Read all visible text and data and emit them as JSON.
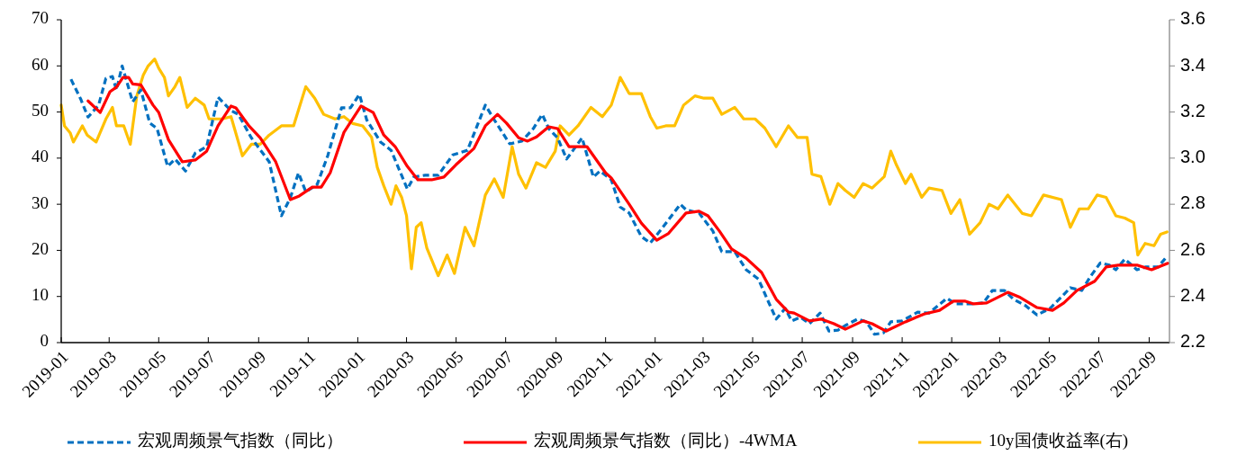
{
  "chart_data": {
    "type": "line",
    "legend": "bottom",
    "grid": false,
    "xlim": [
      "2019-01-01",
      "2022-09-26"
    ],
    "xticks": [
      "2019-01",
      "2019-03",
      "2019-05",
      "2019-07",
      "2019-09",
      "2019-11",
      "2020-01",
      "2020-03",
      "2020-05",
      "2020-07",
      "2020-09",
      "2020-11",
      "2021-01",
      "2021-03",
      "2021-05",
      "2021-07",
      "2021-09",
      "2021-11",
      "2022-01",
      "2022-03",
      "2022-05",
      "2022-07",
      "2022-09"
    ],
    "ylim": [
      0,
      70
    ],
    "yticks": [
      0,
      10,
      20,
      30,
      40,
      50,
      60,
      70
    ],
    "y2lim": [
      2.2,
      3.6
    ],
    "y2ticks": [
      2.2,
      2.4,
      2.6,
      2.8,
      {
        "value": 3,
        "label": "3.0"
      },
      3.2,
      3.4,
      3.6
    ],
    "series": [
      {
        "name": "宏观周频景气指数（同比）",
        "color": "#0070c0",
        "line_style": "dashed",
        "x": [
          "2019-01-13",
          "2019-01-25",
          "2019-02-03",
          "2019-02-16",
          "2019-02-25",
          "2019-03-05",
          "2019-03-10",
          "2019-03-17",
          "2019-03-30",
          "2019-04-09",
          "2019-04-20",
          "2019-04-29",
          "2019-05-12",
          "2019-05-21",
          "2019-06-03",
          "2019-06-15",
          "2019-06-29",
          "2019-07-13",
          "2019-07-29",
          "2019-08-07",
          "2019-08-23",
          "2019-09-14",
          "2019-09-29",
          "2019-10-10",
          "2019-10-20",
          "2019-10-29",
          "2019-11-12",
          "2019-11-25",
          "2019-12-12",
          "2019-12-23",
          "2020-01-03",
          "2020-01-12",
          "2020-01-29",
          "2020-02-11",
          "2020-03-02",
          "2020-03-10",
          "2020-03-24",
          "2020-04-09",
          "2020-04-27",
          "2020-05-15",
          "2020-06-06",
          "2020-06-17",
          "2020-07-06",
          "2020-07-21",
          "2020-08-04",
          "2020-08-15",
          "2020-08-23",
          "2020-09-03",
          "2020-09-14",
          "2020-09-22",
          "2020-10-03",
          "2020-10-17",
          "2020-10-25",
          "2020-11-08",
          "2020-11-19",
          "2020-11-30",
          "2020-12-15",
          "2020-12-26",
          "2021-01-10",
          "2021-02-01",
          "2021-02-08",
          "2021-02-24",
          "2021-03-13",
          "2021-03-24",
          "2021-04-09",
          "2021-04-23",
          "2021-05-08",
          "2021-05-19",
          "2021-05-30",
          "2021-06-10",
          "2021-06-18",
          "2021-06-29",
          "2021-07-10",
          "2021-07-23",
          "2021-08-03",
          "2021-08-14",
          "2021-08-23",
          "2021-09-07",
          "2021-09-18",
          "2021-09-28",
          "2021-10-09",
          "2021-10-18",
          "2021-11-01",
          "2021-11-20",
          "2021-12-04",
          "2021-12-26",
          "2022-01-06",
          "2022-01-25",
          "2022-02-09",
          "2022-02-20",
          "2022-03-07",
          "2022-03-18",
          "2022-04-02",
          "2022-04-16",
          "2022-05-02",
          "2022-05-16",
          "2022-05-27",
          "2022-06-10",
          "2022-06-21",
          "2022-07-03",
          "2022-07-14",
          "2022-07-22",
          "2022-08-02",
          "2022-08-17",
          "2022-08-28",
          "2022-09-12",
          "2022-09-23"
        ],
        "values": [
          57.1,
          52.8,
          48.9,
          51.5,
          57.3,
          57.7,
          54.8,
          60,
          52.2,
          54.8,
          47.6,
          46.4,
          38.2,
          39.8,
          37.2,
          41.1,
          42.5,
          53.2,
          50.3,
          49.5,
          44.4,
          39.2,
          27.5,
          31.4,
          36.8,
          32.7,
          34.3,
          40.5,
          50.9,
          50.9,
          53.8,
          48.3,
          43.5,
          41.7,
          33.3,
          35.9,
          36.3,
          36.3,
          40.7,
          41.7,
          51.5,
          48.3,
          43.1,
          43.7,
          46.4,
          49.5,
          46.4,
          44.4,
          39.8,
          41.7,
          44.4,
          35.9,
          37.2,
          35.3,
          29.4,
          28.1,
          23,
          21.6,
          24.9,
          30,
          28.8,
          28.1,
          24.2,
          19.7,
          19.7,
          15.8,
          13.8,
          9.4,
          5.1,
          7.4,
          4.7,
          5.5,
          4.1,
          6.4,
          2.5,
          2.7,
          3.7,
          5.1,
          4.5,
          1.8,
          2.1,
          4.5,
          4.7,
          6.6,
          6.4,
          9.6,
          8.4,
          8.4,
          8.6,
          11.3,
          11.3,
          9.4,
          8,
          6,
          7.4,
          9.9,
          11.9,
          11.3,
          14.4,
          17.3,
          16.8,
          15.8,
          18.1,
          15.8,
          16.4,
          16.4,
          18.7
        ]
      },
      {
        "name": "宏观周频景气指数（同比）-4WMA",
        "color": "#ff0000",
        "line_style": "solid",
        "x": [
          "2019-02-03",
          "2019-02-18",
          "2019-03-02",
          "2019-03-10",
          "2019-03-18",
          "2019-03-25",
          "2019-03-30",
          "2019-04-09",
          "2019-04-24",
          "2019-05-01",
          "2019-05-13",
          "2019-05-30",
          "2019-06-15",
          "2019-06-29",
          "2019-07-13",
          "2019-07-29",
          "2019-08-04",
          "2019-08-20",
          "2019-09-03",
          "2019-09-22",
          "2019-10-10",
          "2019-10-21",
          "2019-11-06",
          "2019-11-17",
          "2019-11-28",
          "2019-12-15",
          "2020-01-05",
          "2020-01-20",
          "2020-02-02",
          "2020-02-16",
          "2020-03-02",
          "2020-03-15",
          "2020-04-01",
          "2020-04-16",
          "2020-05-01",
          "2020-05-23",
          "2020-06-06",
          "2020-06-21",
          "2020-07-02",
          "2020-07-17",
          "2020-07-28",
          "2020-08-08",
          "2020-08-23",
          "2020-09-03",
          "2020-09-17",
          "2020-10-09",
          "2020-11-01",
          "2020-11-08",
          "2020-11-30",
          "2020-12-15",
          "2021-01-03",
          "2021-01-17",
          "2021-02-08",
          "2021-02-24",
          "2021-03-07",
          "2021-03-21",
          "2021-04-05",
          "2021-04-23",
          "2021-05-12",
          "2021-05-30",
          "2021-06-14",
          "2021-06-21",
          "2021-07-10",
          "2021-07-24",
          "2021-08-09",
          "2021-08-23",
          "2021-09-14",
          "2021-09-25",
          "2021-10-12",
          "2021-11-05",
          "2021-11-28",
          "2021-12-17",
          "2022-01-03",
          "2022-01-17",
          "2022-01-28",
          "2022-02-13",
          "2022-03-11",
          "2022-03-25",
          "2022-04-16",
          "2022-05-05",
          "2022-05-19",
          "2022-06-04",
          "2022-06-26",
          "2022-07-10",
          "2022-07-25",
          "2022-08-17",
          "2022-09-04",
          "2022-09-24"
        ],
        "values": [
          52.4,
          49.9,
          54.4,
          55.4,
          57.5,
          57.5,
          56.1,
          55.9,
          51.5,
          49.9,
          44,
          39.2,
          39.6,
          41.5,
          47,
          51.3,
          50.9,
          47,
          44.4,
          39.2,
          31,
          31.8,
          33.7,
          33.7,
          36.8,
          45.6,
          51.3,
          49.9,
          45,
          42.5,
          38.2,
          35.3,
          35.3,
          35.9,
          38.6,
          42.1,
          47,
          49.5,
          47.6,
          44.4,
          43.7,
          44.6,
          46.8,
          46.4,
          42.5,
          42.5,
          36.8,
          35.7,
          30,
          25.9,
          22.2,
          23.6,
          28.1,
          28.5,
          27.5,
          24.2,
          20.3,
          18.3,
          15.2,
          9.4,
          6.6,
          6.4,
          4.7,
          5.1,
          4.1,
          2.9,
          4.7,
          4.1,
          2.5,
          4.5,
          6.2,
          7,
          9,
          9,
          8.4,
          8.6,
          10.9,
          9.9,
          7.6,
          7,
          8.6,
          11.3,
          13.3,
          16.4,
          16.8,
          16.8,
          15.8,
          17.2
        ]
      },
      {
        "name": "10y国债收益率(右)",
        "color": "#ffc000",
        "line_style": "solid",
        "axis": "y2",
        "x": [
          "2019-01-01",
          "2019-01-05",
          "2019-01-12",
          "2019-01-16",
          "2019-01-27",
          "2019-02-02",
          "2019-02-13",
          "2019-02-25",
          "2019-03-05",
          "2019-03-10",
          "2019-03-19",
          "2019-03-27",
          "2019-04-04",
          "2019-04-12",
          "2019-04-18",
          "2019-04-26",
          "2019-05-01",
          "2019-05-08",
          "2019-05-13",
          "2019-05-21",
          "2019-05-27",
          "2019-06-05",
          "2019-06-15",
          "2019-06-26",
          "2019-07-02",
          "2019-07-18",
          "2019-07-29",
          "2019-08-12",
          "2019-08-23",
          "2019-09-03",
          "2019-09-14",
          "2019-09-29",
          "2019-10-14",
          "2019-10-21",
          "2019-10-29",
          "2019-11-09",
          "2019-11-20",
          "2019-12-04",
          "2019-12-15",
          "2019-12-26",
          "2020-01-07",
          "2020-01-18",
          "2020-01-25",
          "2020-02-02",
          "2020-02-11",
          "2020-02-17",
          "2020-02-24",
          "2020-03-01",
          "2020-03-07",
          "2020-03-13",
          "2020-03-19",
          "2020-03-26",
          "2020-04-09",
          "2020-04-20",
          "2020-04-29",
          "2020-05-12",
          "2020-05-23",
          "2020-06-06",
          "2020-06-17",
          "2020-06-28",
          "2020-07-09",
          "2020-07-17",
          "2020-07-26",
          "2020-08-08",
          "2020-08-19",
          "2020-08-31",
          "2020-09-06",
          "2020-09-17",
          "2020-09-28",
          "2020-10-14",
          "2020-10-28",
          "2020-11-08",
          "2020-11-19",
          "2020-11-30",
          "2020-12-15",
          "2020-12-26",
          "2021-01-03",
          "2021-01-14",
          "2021-01-25",
          "2021-02-05",
          "2021-02-19",
          "2021-03-02",
          "2021-03-13",
          "2021-03-24",
          "2021-04-09",
          "2021-04-20",
          "2021-05-04",
          "2021-05-16",
          "2021-05-30",
          "2021-06-14",
          "2021-06-25",
          "2021-07-07",
          "2021-07-13",
          "2021-07-24",
          "2021-08-04",
          "2021-08-14",
          "2021-08-23",
          "2021-09-03",
          "2021-09-14",
          "2021-09-25",
          "2021-10-10",
          "2021-10-18",
          "2021-10-25",
          "2021-11-05",
          "2021-11-12",
          "2021-11-25",
          "2021-12-04",
          "2021-12-20",
          "2021-12-31",
          "2022-01-11",
          "2022-01-23",
          "2022-02-05",
          "2022-02-16",
          "2022-02-27",
          "2022-03-11",
          "2022-03-29",
          "2022-04-09",
          "2022-04-24",
          "2022-05-16",
          "2022-05-27",
          "2022-06-07",
          "2022-06-18",
          "2022-06-29",
          "2022-07-10",
          "2022-07-22",
          "2022-08-02",
          "2022-08-13",
          "2022-08-18",
          "2022-08-27",
          "2022-09-07",
          "2022-09-15",
          "2022-09-23"
        ],
        "values": [
          3.23,
          3.14,
          3.11,
          3.07,
          3.14,
          3.1,
          3.07,
          3.17,
          3.22,
          3.14,
          3.14,
          3.06,
          3.27,
          3.36,
          3.4,
          3.43,
          3.39,
          3.35,
          3.27,
          3.31,
          3.35,
          3.22,
          3.26,
          3.23,
          3.17,
          3.17,
          3.18,
          3.01,
          3.06,
          3.06,
          3.1,
          3.14,
          3.14,
          3.22,
          3.31,
          3.26,
          3.19,
          3.17,
          3.18,
          3.15,
          3.14,
          3.09,
          2.96,
          2.88,
          2.8,
          2.88,
          2.83,
          2.75,
          2.52,
          2.7,
          2.72,
          2.61,
          2.49,
          2.58,
          2.5,
          2.7,
          2.62,
          2.84,
          2.91,
          2.83,
          3.05,
          2.93,
          2.87,
          2.98,
          2.96,
          3.03,
          3.14,
          3.1,
          3.14,
          3.22,
          3.18,
          3.23,
          3.35,
          3.28,
          3.28,
          3.18,
          3.13,
          3.14,
          3.14,
          3.23,
          3.27,
          3.26,
          3.26,
          3.19,
          3.22,
          3.17,
          3.17,
          3.13,
          3.05,
          3.14,
          3.09,
          3.09,
          2.93,
          2.92,
          2.8,
          2.89,
          2.86,
          2.83,
          2.89,
          2.87,
          2.92,
          3.03,
          2.97,
          2.89,
          2.93,
          2.83,
          2.87,
          2.86,
          2.76,
          2.82,
          2.67,
          2.72,
          2.8,
          2.78,
          2.84,
          2.76,
          2.75,
          2.84,
          2.82,
          2.7,
          2.78,
          2.78,
          2.84,
          2.83,
          2.75,
          2.74,
          2.72,
          2.58,
          2.63,
          2.62,
          2.67,
          2.68
        ]
      }
    ]
  }
}
